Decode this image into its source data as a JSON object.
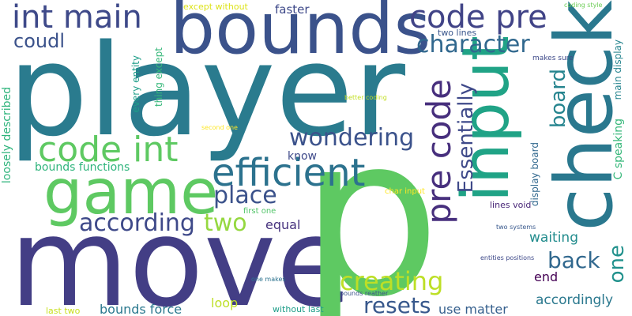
{
  "words": [
    {
      "text": "player",
      "color": "#2a7b8e"
    },
    {
      "text": "move",
      "color": "#433e85"
    },
    {
      "text": "bounds",
      "color": "#3b528b"
    },
    {
      "text": "p",
      "color": "#5ec962"
    },
    {
      "text": "check",
      "color": "#2a788e"
    },
    {
      "text": "input",
      "color": "#20a386"
    },
    {
      "text": "game",
      "color": "#5ec962"
    },
    {
      "text": "efficient",
      "color": "#2c728e"
    },
    {
      "text": "code int",
      "color": "#5ec962"
    },
    {
      "text": "int main",
      "color": "#3e4989"
    },
    {
      "text": "code pre",
      "color": "#414487"
    },
    {
      "text": "pre code",
      "color": "#472f7d"
    },
    {
      "text": "character",
      "color": "#31688e"
    },
    {
      "text": "wondering",
      "color": "#3b528b"
    },
    {
      "text": "creating",
      "color": "#bddf26"
    },
    {
      "text": "place",
      "color": "#3b528b"
    },
    {
      "text": "according",
      "color": "#3e4989"
    },
    {
      "text": "two",
      "color": "#95d840"
    },
    {
      "text": "back",
      "color": "#31688e"
    },
    {
      "text": "resets",
      "color": "#38588c"
    },
    {
      "text": "Essentially",
      "color": "#3e4989"
    },
    {
      "text": "board",
      "color": "#25848e"
    },
    {
      "text": "one",
      "color": "#21918c"
    },
    {
      "text": "coudl",
      "color": "#3b528b"
    },
    {
      "text": "waiting",
      "color": "#228c8d"
    },
    {
      "text": "accordingly",
      "color": "#2a788e"
    },
    {
      "text": "use matter",
      "color": "#355f8d"
    },
    {
      "text": "bounds force",
      "color": "#2a788e"
    },
    {
      "text": "equal",
      "color": "#46327e"
    },
    {
      "text": "loop",
      "color": "#bddf26"
    },
    {
      "text": "know",
      "color": "#3e4989"
    },
    {
      "text": "faster",
      "color": "#3e4989"
    },
    {
      "text": "loosely described",
      "color": "#2fb47c"
    },
    {
      "text": "bounds functions",
      "color": "#2fb47c"
    },
    {
      "text": "end",
      "color": "#440154"
    },
    {
      "text": "C speaking",
      "color": "#35b779"
    },
    {
      "text": "main display",
      "color": "#25848e"
    },
    {
      "text": "display board",
      "color": "#31688e"
    },
    {
      "text": "every entity",
      "color": "#1f9e89"
    },
    {
      "text": "thing except",
      "color": "#35b779"
    },
    {
      "text": "except without",
      "color": "#dde318"
    },
    {
      "text": "two lines",
      "color": "#39568c"
    },
    {
      "text": "lines void",
      "color": "#482677"
    },
    {
      "text": "without last",
      "color": "#1f9e89"
    },
    {
      "text": "first one",
      "color": "#52c569"
    },
    {
      "text": "last two",
      "color": "#c8e020"
    },
    {
      "text": "char input",
      "color": "#fde725"
    },
    {
      "text": "makes sure",
      "color": "#3e4989"
    },
    {
      "text": "coding style",
      "color": "#6ece58"
    },
    {
      "text": "better coding",
      "color": "#c2df23"
    },
    {
      "text": "second one",
      "color": "#fde725"
    },
    {
      "text": "two systems",
      "color": "#38588c"
    },
    {
      "text": "entities positions",
      "color": "#3e4989"
    },
    {
      "text": "one makes",
      "color": "#2c728e"
    },
    {
      "text": "bounds reather",
      "color": "#3b528b"
    }
  ]
}
